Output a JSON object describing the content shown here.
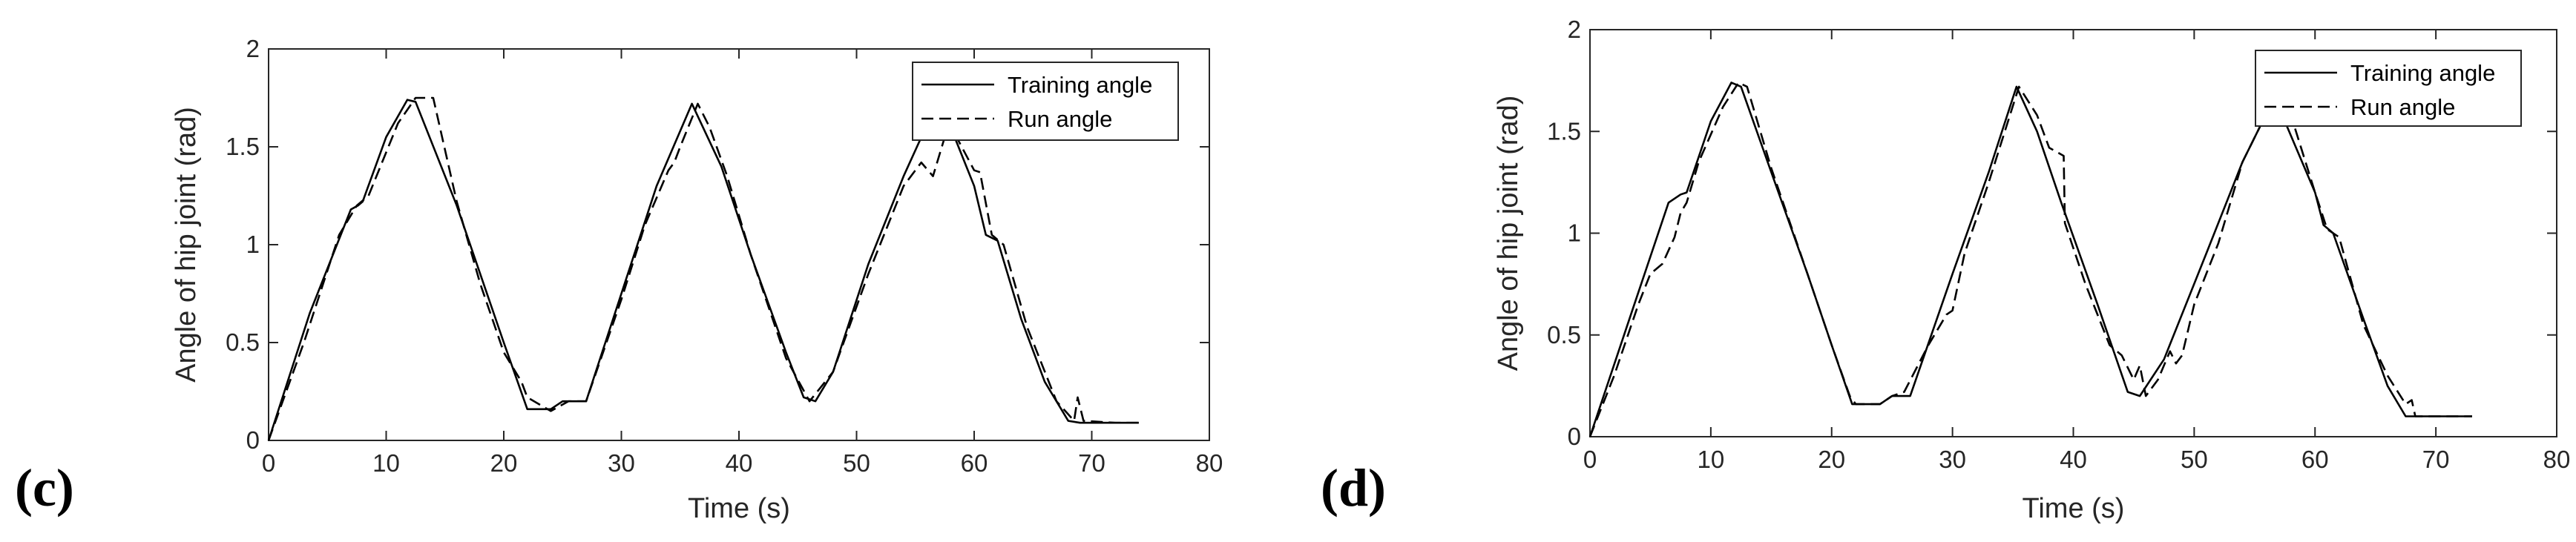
{
  "chart_data": [
    {
      "panel_label": "(c)",
      "type": "line",
      "xlabel": "Time (s)",
      "ylabel": "Angle of hip joint (rad)",
      "xlim": [
        0,
        80
      ],
      "ylim": [
        0,
        2
      ],
      "xticks": [
        "0",
        "10",
        "20",
        "30",
        "40",
        "50",
        "60",
        "70",
        "80"
      ],
      "yticks": [
        "0",
        "0.5",
        "1",
        "1.5",
        "2"
      ],
      "grid": false,
      "legend_position": "top-right",
      "series": [
        {
          "name": "Training angle",
          "style": "solid",
          "color": "#000000",
          "points": [
            [
              0,
              0
            ],
            [
              3.5,
              0.65
            ],
            [
              7,
              1.18
            ],
            [
              7.6,
              1.2
            ],
            [
              8,
              1.22
            ],
            [
              10,
              1.55
            ],
            [
              11.8,
              1.74
            ],
            [
              12.5,
              1.73
            ],
            [
              16,
              1.2
            ],
            [
              18,
              0.85
            ],
            [
              20,
              0.5
            ],
            [
              22,
              0.16
            ],
            [
              24,
              0.16
            ],
            [
              25,
              0.2
            ],
            [
              27,
              0.2
            ],
            [
              30,
              0.75
            ],
            [
              33,
              1.3
            ],
            [
              36,
              1.72
            ],
            [
              38.5,
              1.4
            ],
            [
              41,
              0.95
            ],
            [
              44,
              0.45
            ],
            [
              45.5,
              0.22
            ],
            [
              46.5,
              0.2
            ],
            [
              48,
              0.35
            ],
            [
              51,
              0.9
            ],
            [
              54,
              1.35
            ],
            [
              56.5,
              1.68
            ],
            [
              58,
              1.6
            ],
            [
              60,
              1.3
            ],
            [
              61,
              1.05
            ],
            [
              62,
              1.02
            ],
            [
              64,
              0.62
            ],
            [
              66,
              0.3
            ],
            [
              68,
              0.1
            ],
            [
              69,
              0.09
            ],
            [
              72,
              0.09
            ],
            [
              74,
              0.09
            ]
          ]
        },
        {
          "name": "Run angle",
          "style": "dashed",
          "color": "#000000",
          "points": [
            [
              0,
              0
            ],
            [
              3,
              0.5
            ],
            [
              6,
              1.05
            ],
            [
              7.5,
              1.2
            ],
            [
              8.5,
              1.25
            ],
            [
              11,
              1.62
            ],
            [
              12.5,
              1.75
            ],
            [
              14,
              1.75
            ],
            [
              16,
              1.22
            ],
            [
              18,
              0.8
            ],
            [
              20,
              0.45
            ],
            [
              21.5,
              0.3
            ],
            [
              22,
              0.22
            ],
            [
              24,
              0.15
            ],
            [
              25.5,
              0.2
            ],
            [
              27,
              0.2
            ],
            [
              30,
              0.72
            ],
            [
              32,
              1.1
            ],
            [
              34,
              1.38
            ],
            [
              34.5,
              1.42
            ],
            [
              35,
              1.5
            ],
            [
              36.5,
              1.72
            ],
            [
              37.5,
              1.6
            ],
            [
              39,
              1.35
            ],
            [
              41,
              0.95
            ],
            [
              44,
              0.42
            ],
            [
              46,
              0.2
            ],
            [
              48,
              0.35
            ],
            [
              51,
              0.85
            ],
            [
              54,
              1.3
            ],
            [
              55.5,
              1.42
            ],
            [
              56.5,
              1.35
            ],
            [
              57.5,
              1.55
            ],
            [
              58.5,
              1.55
            ],
            [
              60,
              1.38
            ],
            [
              60.5,
              1.37
            ],
            [
              61.5,
              1.05
            ],
            [
              62.5,
              1.0
            ],
            [
              64.5,
              0.58
            ],
            [
              67,
              0.2
            ],
            [
              68.5,
              0.1
            ],
            [
              68.8,
              0.22
            ],
            [
              69.3,
              0.1
            ],
            [
              72,
              0.09
            ],
            [
              74,
              0.09
            ]
          ]
        }
      ]
    },
    {
      "panel_label": "(d)",
      "type": "line",
      "xlabel": "Time (s)",
      "ylabel": "Angle of hip joint (rad)",
      "xlim": [
        0,
        80
      ],
      "ylim": [
        0,
        2
      ],
      "xticks": [
        "0",
        "10",
        "20",
        "30",
        "40",
        "50",
        "60",
        "70",
        "80"
      ],
      "yticks": [
        "0",
        "0.5",
        "1",
        "1.5",
        "2"
      ],
      "grid": false,
      "legend_position": "top-right",
      "series": [
        {
          "name": "Training angle",
          "style": "solid",
          "color": "#000000",
          "points": [
            [
              0,
              0
            ],
            [
              3.5,
              0.62
            ],
            [
              6.5,
              1.15
            ],
            [
              7.5,
              1.19
            ],
            [
              8,
              1.2
            ],
            [
              10,
              1.55
            ],
            [
              11.7,
              1.74
            ],
            [
              12.5,
              1.72
            ],
            [
              15,
              1.3
            ],
            [
              18,
              0.8
            ],
            [
              20,
              0.45
            ],
            [
              21.7,
              0.16
            ],
            [
              24,
              0.16
            ],
            [
              25,
              0.2
            ],
            [
              26.5,
              0.2
            ],
            [
              30,
              0.8
            ],
            [
              33,
              1.3
            ],
            [
              35.3,
              1.72
            ],
            [
              37,
              1.5
            ],
            [
              39,
              1.15
            ],
            [
              42,
              0.65
            ],
            [
              44.5,
              0.22
            ],
            [
              45.5,
              0.2
            ],
            [
              47.5,
              0.38
            ],
            [
              51,
              0.9
            ],
            [
              54,
              1.35
            ],
            [
              56.5,
              1.65
            ],
            [
              57.5,
              1.55
            ],
            [
              60,
              1.2
            ],
            [
              60.7,
              1.04
            ],
            [
              61.5,
              1.0
            ],
            [
              64,
              0.58
            ],
            [
              66,
              0.25
            ],
            [
              67.5,
              0.1
            ],
            [
              70,
              0.1
            ],
            [
              73,
              0.1
            ]
          ]
        },
        {
          "name": "Run angle",
          "style": "dashed",
          "color": "#000000",
          "points": [
            [
              0,
              0
            ],
            [
              2,
              0.3
            ],
            [
              4,
              0.65
            ],
            [
              5,
              0.8
            ],
            [
              6,
              0.85
            ],
            [
              7,
              0.98
            ],
            [
              7.5,
              1.1
            ],
            [
              8,
              1.15
            ],
            [
              9,
              1.35
            ],
            [
              11,
              1.62
            ],
            [
              12.3,
              1.74
            ],
            [
              13,
              1.72
            ],
            [
              15,
              1.32
            ],
            [
              18,
              0.8
            ],
            [
              20,
              0.45
            ],
            [
              21.5,
              0.2
            ],
            [
              22,
              0.16
            ],
            [
              24,
              0.16
            ],
            [
              25,
              0.2
            ],
            [
              26,
              0.22
            ],
            [
              28,
              0.45
            ],
            [
              29.5,
              0.6
            ],
            [
              30,
              0.62
            ],
            [
              31,
              0.9
            ],
            [
              33,
              1.25
            ],
            [
              35.5,
              1.72
            ],
            [
              37,
              1.58
            ],
            [
              38,
              1.42
            ],
            [
              39.2,
              1.38
            ],
            [
              39.3,
              1.05
            ],
            [
              41,
              0.75
            ],
            [
              43,
              0.45
            ],
            [
              44,
              0.4
            ],
            [
              45,
              0.28
            ],
            [
              45.5,
              0.35
            ],
            [
              46,
              0.2
            ],
            [
              47,
              0.28
            ],
            [
              48,
              0.42
            ],
            [
              48.5,
              0.36
            ],
            [
              49,
              0.4
            ],
            [
              50,
              0.65
            ],
            [
              52,
              0.95
            ],
            [
              54,
              1.35
            ],
            [
              56.5,
              1.65
            ],
            [
              58,
              1.58
            ],
            [
              60,
              1.2
            ],
            [
              61,
              1.02
            ],
            [
              62,
              0.98
            ],
            [
              64,
              0.55
            ],
            [
              66,
              0.3
            ],
            [
              67.5,
              0.16
            ],
            [
              68,
              0.18
            ],
            [
              68.3,
              0.1
            ],
            [
              70,
              0.1
            ],
            [
              73,
              0.1
            ]
          ]
        }
      ]
    }
  ]
}
